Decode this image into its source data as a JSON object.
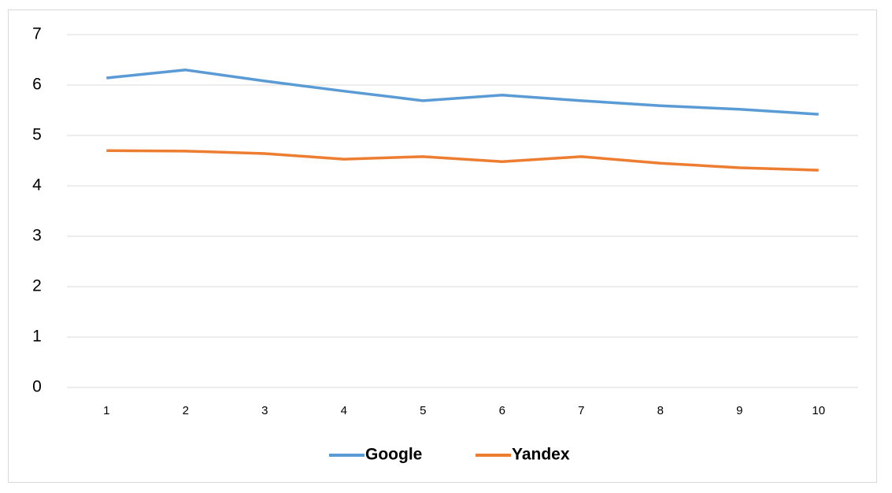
{
  "chart_data": {
    "type": "line",
    "categories": [
      "1",
      "2",
      "3",
      "4",
      "5",
      "6",
      "7",
      "8",
      "9",
      "10"
    ],
    "series": [
      {
        "name": "Google",
        "color": "#5b9bd5",
        "values": [
          6.14,
          6.3,
          6.08,
          5.88,
          5.69,
          5.8,
          5.69,
          5.59,
          5.52,
          5.42
        ]
      },
      {
        "name": "Yandex",
        "color": "#ed7d31",
        "values": [
          4.7,
          4.69,
          4.64,
          4.53,
          4.58,
          4.48,
          4.58,
          4.45,
          4.36,
          4.31
        ]
      }
    ],
    "ylim": [
      0,
      7
    ],
    "yticks": [
      0,
      1,
      2,
      3,
      4,
      5,
      6,
      7
    ],
    "grid": true,
    "legend": "bottom"
  }
}
